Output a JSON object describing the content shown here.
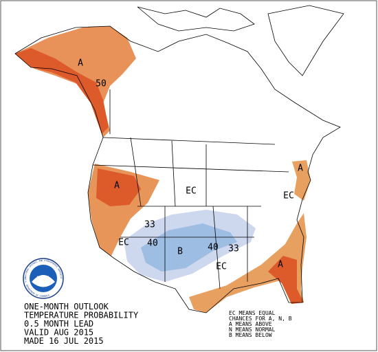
{
  "legend_left": [
    "ONE-MONTH OUTLOOK",
    "TEMPERATURE PROBABILITY",
    "0.5 MONTH LEAD",
    "VALID AUG 2015",
    "MADE 16 JUL 2015"
  ],
  "legend_right": [
    "EC MEANS EQUAL",
    "CHANCES FOR A, N, B",
    "A MEANS ABOVE",
    "N MEANS NORMAL",
    "B MEANS BELOW"
  ],
  "logo": {
    "name": "NOAA",
    "ring_top": "NATIONAL OCEANIC AND ATMOSPHERIC ADMINISTRATION",
    "ring_bottom": "U.S. DEPARTMENT OF COMMERCE"
  },
  "map_labels": [
    "A",
    "50",
    "A",
    "EC",
    "33",
    "EC",
    "40",
    "B",
    "40",
    "33",
    "EC",
    "A",
    "EC",
    "A"
  ]
}
